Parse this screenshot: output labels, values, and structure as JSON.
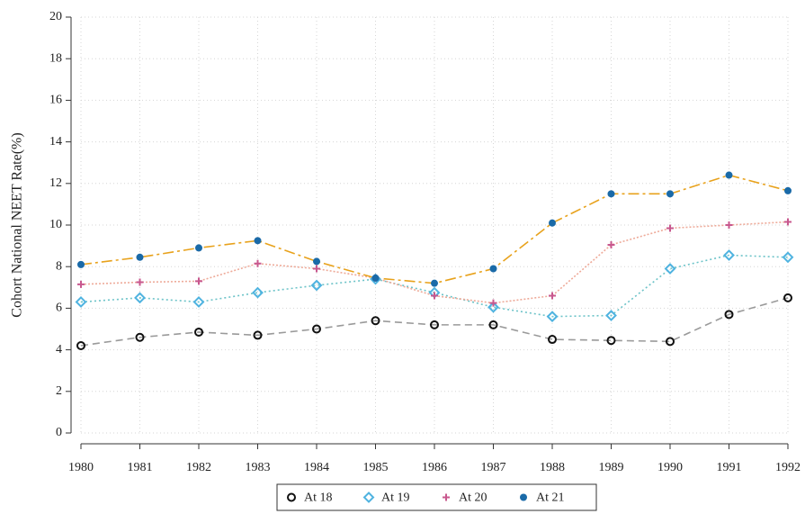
{
  "chart_data": {
    "type": "line",
    "y_label": "Cohort National NEET Rate(%)",
    "x": [
      1980,
      1981,
      1982,
      1983,
      1984,
      1985,
      1986,
      1987,
      1988,
      1989,
      1990,
      1991,
      1992
    ],
    "xlim": [
      1980,
      1992
    ],
    "xticks": [
      1980,
      1981,
      1982,
      1983,
      1984,
      1985,
      1986,
      1987,
      1988,
      1989,
      1990,
      1991,
      1992
    ],
    "ylim": [
      0,
      20
    ],
    "yticks": [
      0,
      2,
      4,
      6,
      8,
      10,
      12,
      14,
      16,
      18,
      20
    ],
    "grid": true,
    "legend": "bottom",
    "series": [
      {
        "name": "At 18",
        "color": "#111111",
        "line_color": "#9a9a9a",
        "marker": "circle",
        "dash": "8,5",
        "values": [
          4.2,
          4.6,
          4.85,
          4.7,
          5.0,
          5.4,
          5.2,
          5.2,
          4.5,
          4.45,
          4.4,
          5.7,
          6.5
        ]
      },
      {
        "name": "At 19",
        "color": "#4fb3e0",
        "line_color": "#6cc3c8",
        "marker": "diamond",
        "dash": "2,3",
        "values": [
          6.3,
          6.5,
          6.3,
          6.75,
          7.1,
          7.4,
          6.75,
          6.05,
          5.6,
          5.65,
          7.9,
          8.55,
          8.45
        ]
      },
      {
        "name": "At 20",
        "color": "#c8588e",
        "line_color": "#eeaa99",
        "marker": "plus",
        "dash": "2,2",
        "values": [
          7.15,
          7.25,
          7.3,
          8.15,
          7.9,
          7.45,
          6.6,
          6.25,
          6.6,
          9.05,
          9.85,
          10.0,
          10.15
        ]
      },
      {
        "name": "At 21",
        "color": "#1a6aa8",
        "line_color": "#e8a21c",
        "marker": "dot",
        "dash": "12,4,3,4",
        "values": [
          8.1,
          8.45,
          8.9,
          9.25,
          8.25,
          7.45,
          7.2,
          7.9,
          10.1,
          11.5,
          11.5,
          12.4,
          11.65
        ]
      }
    ]
  }
}
